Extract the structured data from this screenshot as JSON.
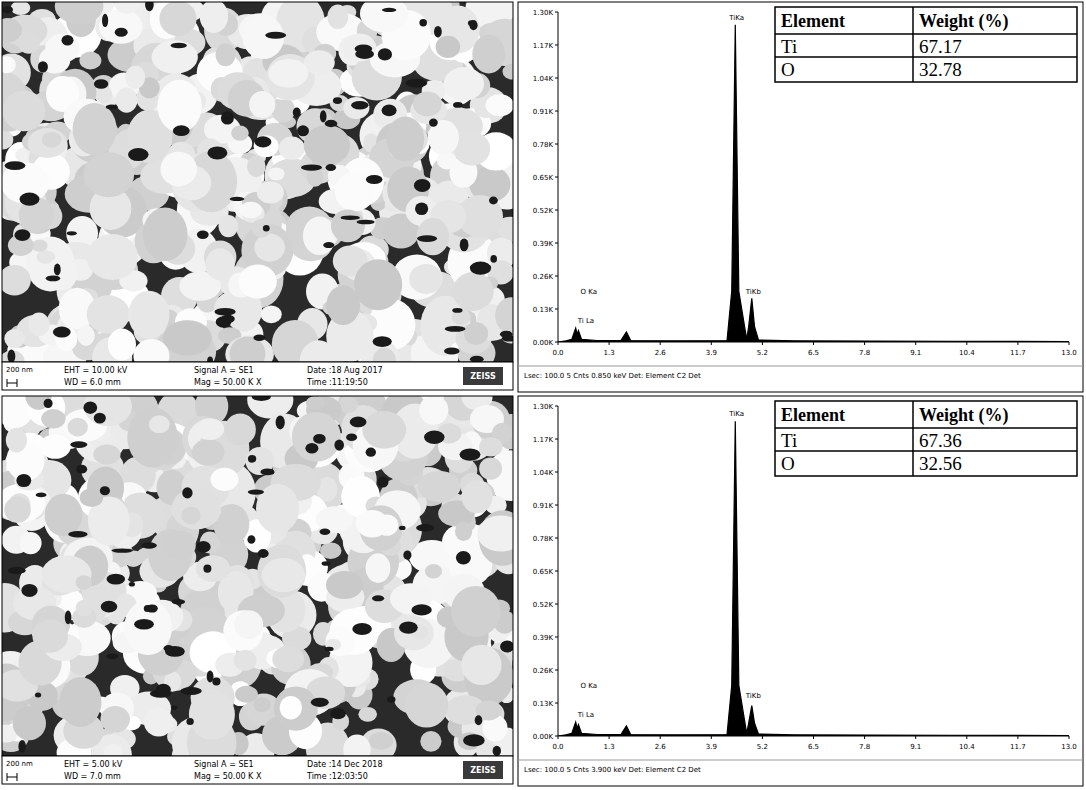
{
  "sem_panels": [
    {
      "scale_bar": "200 nm",
      "eht": "EHT = 10.00 kV",
      "wd": "WD = 6.0 mm",
      "signal": "Signal A = SE1",
      "mag": "Mag = 50.00 K X",
      "date": "Date :18 Aug 2017",
      "time": "Time :11:19:50",
      "logo": "ZEISS"
    },
    {
      "scale_bar": "200 nm",
      "eht": "EHT = 5.00 kV",
      "wd": "WD = 7.0 mm",
      "signal": "Signal A = SE1",
      "mag": "Mag = 50.00 K X",
      "date": "Date :14 Dec 2018",
      "time": "Time :12:03:50",
      "logo": "ZEISS"
    }
  ],
  "chart_data": [
    {
      "type": "line",
      "color": "#000000",
      "x": [
        0,
        0.2,
        0.35,
        0.45,
        0.49,
        0.52,
        0.6,
        1.0,
        1.6,
        1.74,
        1.85,
        3.0,
        4.3,
        4.42,
        4.51,
        4.6,
        4.8,
        4.85,
        4.93,
        5.0,
        5.1,
        6.0,
        8.0,
        10.0,
        13.0
      ],
      "values": [
        0,
        5,
        10,
        55,
        30,
        45,
        10,
        6,
        6,
        40,
        6,
        5,
        6,
        200,
        1250,
        200,
        10,
        60,
        172,
        60,
        8,
        5,
        4,
        3,
        2
      ],
      "xlim": [
        0,
        13
      ],
      "ylim": [
        0,
        1300
      ],
      "xticks": [
        {
          "value": 0,
          "label": "0.0"
        },
        1.3,
        2.6,
        3.9,
        5.2,
        6.5,
        7.8,
        9.1,
        10.4,
        11.7,
        {
          "value": 13,
          "label": "13.0"
        }
      ],
      "yticks": [
        {
          "value": 0,
          "label": "0.00K"
        },
        {
          "value": 130,
          "label": "0.13K"
        },
        {
          "value": 260,
          "label": "0.26K"
        },
        {
          "value": 390,
          "label": "0.39K"
        },
        {
          "value": 520,
          "label": "0.52K"
        },
        {
          "value": 650,
          "label": "0.65K"
        },
        {
          "value": 780,
          "label": "0.78K"
        },
        {
          "value": 910,
          "label": "0.91K"
        },
        {
          "value": 1040,
          "label": "1.04K"
        },
        {
          "value": 1170,
          "label": "1.17K"
        },
        {
          "value": 1300,
          "label": "1.30K"
        }
      ],
      "annotations": [
        {
          "text": "O Ka",
          "x": 0.52,
          "y": 190
        },
        {
          "text": "Ti La",
          "x": 0.45,
          "y": 75
        },
        {
          "text": "TiKa",
          "x": 4.51,
          "y": 1270
        },
        {
          "text": "TiKb",
          "x": 4.93,
          "y": 190
        }
      ],
      "footer": "Lsec: 100.0   5 Cnts   0.850 keV   Det: Element C2 Det"
    },
    {
      "type": "line",
      "color": "#000000",
      "x": [
        0,
        0.2,
        0.35,
        0.45,
        0.49,
        0.52,
        0.6,
        1.0,
        1.6,
        1.74,
        1.85,
        3.0,
        4.3,
        4.42,
        4.51,
        4.6,
        4.8,
        4.85,
        4.93,
        5.0,
        5.1,
        6.0,
        8.0,
        10.0,
        13.0
      ],
      "values": [
        0,
        5,
        10,
        55,
        30,
        45,
        10,
        6,
        6,
        40,
        6,
        5,
        6,
        200,
        1240,
        200,
        10,
        50,
        120,
        50,
        8,
        5,
        4,
        3,
        2
      ],
      "xlim": [
        0,
        13
      ],
      "ylim": [
        0,
        1300
      ],
      "xticks": [
        {
          "value": 0,
          "label": "0.0"
        },
        1.3,
        2.6,
        3.9,
        5.2,
        6.5,
        7.8,
        9.1,
        10.4,
        11.7,
        {
          "value": 13,
          "label": "13.0"
        }
      ],
      "yticks": [
        {
          "value": 0,
          "label": "0.00K"
        },
        {
          "value": 130,
          "label": "0.13K"
        },
        {
          "value": 260,
          "label": "0.26K"
        },
        {
          "value": 390,
          "label": "0.39K"
        },
        {
          "value": 520,
          "label": "0.52K"
        },
        {
          "value": 650,
          "label": "0.65K"
        },
        {
          "value": 780,
          "label": "0.78K"
        },
        {
          "value": 910,
          "label": "0.91K"
        },
        {
          "value": 1040,
          "label": "1.04K"
        },
        {
          "value": 1170,
          "label": "1.17K"
        },
        {
          "value": 1300,
          "label": "1.30K"
        }
      ],
      "annotations": [
        {
          "text": "O Ka",
          "x": 0.52,
          "y": 190
        },
        {
          "text": "Ti La",
          "x": 0.45,
          "y": 75
        },
        {
          "text": "TiKa",
          "x": 4.51,
          "y": 1260
        },
        {
          "text": "TiKb",
          "x": 4.93,
          "y": 150
        }
      ],
      "footer": "Lsec: 100.0   5 Cnts   3.900 keV   Det: Element C2 Det"
    }
  ],
  "tables": [
    {
      "header": [
        "Element",
        "Weight (%)"
      ],
      "rows": [
        [
          "Ti",
          67.17
        ],
        [
          "O",
          32.78
        ]
      ]
    },
    {
      "header": [
        "Element",
        "Weight (%)"
      ],
      "rows": [
        [
          "Ti",
          67.36
        ],
        [
          "O",
          32.56
        ]
      ]
    }
  ]
}
